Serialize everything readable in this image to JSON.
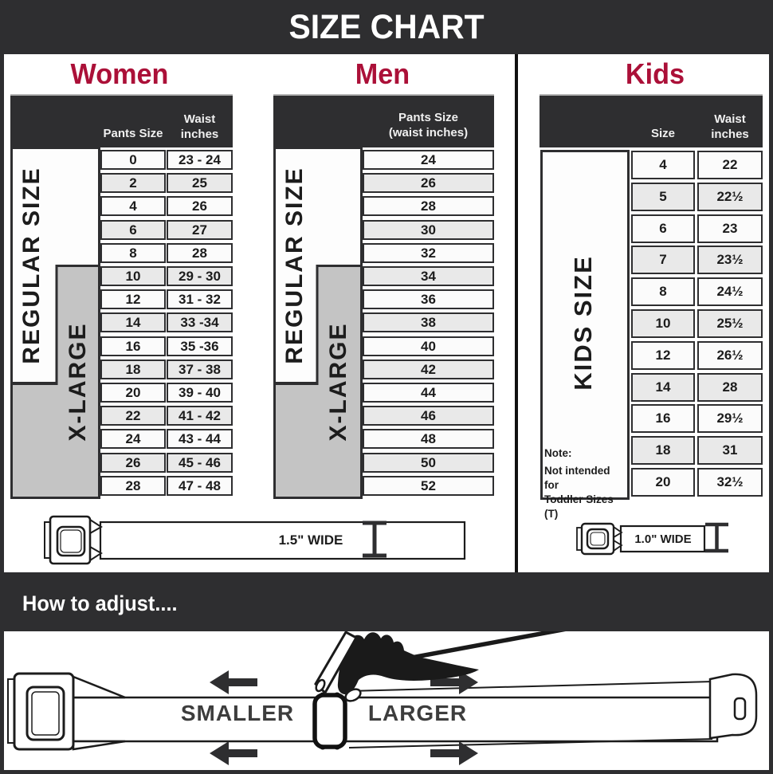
{
  "title": "SIZE CHART",
  "colors": {
    "accent": "#ab1038",
    "dark": "#2e2e30",
    "gray_box": "#c4c4c4",
    "row": "#fbfbfb",
    "row_alt": "#e9e9e9",
    "ink": "#1c1c1c"
  },
  "sections": {
    "women": {
      "heading": "Women",
      "size_group_labels": {
        "regular": "REGULAR SIZE",
        "xlarge": "X-LARGE"
      },
      "columns": [
        "Pants Size",
        "Waist inches"
      ],
      "rows": [
        [
          "0",
          "23 - 24"
        ],
        [
          "2",
          "25"
        ],
        [
          "4",
          "26"
        ],
        [
          "6",
          "27"
        ],
        [
          "8",
          "28"
        ],
        [
          "10",
          "29 - 30"
        ],
        [
          "12",
          "31 - 32"
        ],
        [
          "14",
          "33 -34"
        ],
        [
          "16",
          "35 -36"
        ],
        [
          "18",
          "37 - 38"
        ],
        [
          "20",
          "39 - 40"
        ],
        [
          "22",
          "41 - 42"
        ],
        [
          "24",
          "43 - 44"
        ],
        [
          "26",
          "45 - 46"
        ],
        [
          "28",
          "47 - 48"
        ]
      ]
    },
    "men": {
      "heading": "Men",
      "size_group_labels": {
        "regular": "REGULAR SIZE",
        "xlarge": "X-LARGE"
      },
      "columns": [
        "Pants Size",
        "(waist inches)"
      ],
      "rows": [
        "24",
        "26",
        "28",
        "30",
        "32",
        "34",
        "36",
        "38",
        "40",
        "42",
        "44",
        "46",
        "48",
        "50",
        "52"
      ]
    },
    "kids": {
      "heading": "Kids",
      "size_group_label": "KIDS SIZE",
      "columns": [
        "Size",
        "Waist inches"
      ],
      "rows": [
        [
          "4",
          "22"
        ],
        [
          "5",
          "22½"
        ],
        [
          "6",
          "23"
        ],
        [
          "7",
          "23½"
        ],
        [
          "8",
          "24½"
        ],
        [
          "10",
          "25½"
        ],
        [
          "12",
          "26½"
        ],
        [
          "14",
          "28"
        ],
        [
          "16",
          "29½"
        ],
        [
          "18",
          "31"
        ],
        [
          "20",
          "32½"
        ]
      ],
      "note": [
        "Note:",
        "Not intended for",
        "Toddler Sizes (T)"
      ]
    }
  },
  "belts": {
    "adult_width": "1.5\" WIDE",
    "kids_width": "1.0\" WIDE"
  },
  "adjust": {
    "heading": "How to adjust....",
    "smaller": "SMALLER",
    "larger": "LARGER"
  }
}
